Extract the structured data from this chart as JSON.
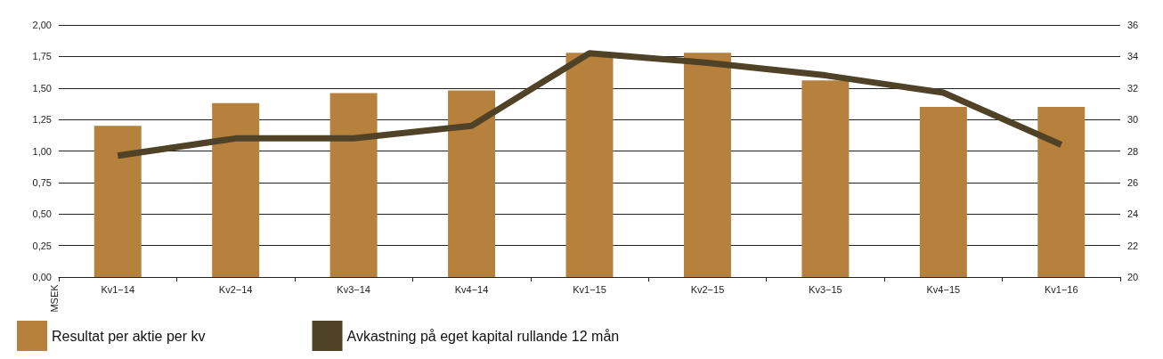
{
  "chart_data": {
    "type": "bar",
    "ylabel": "MSEK",
    "categories": [
      "Kv1−14",
      "Kv2−14",
      "Kv3−14",
      "Kv4−14",
      "Kv1−15",
      "Kv2−15",
      "Kv3−15",
      "Kv4−15",
      "Kv1−16"
    ],
    "series": [
      {
        "name": "Resultat per aktie per kv",
        "color": "#b5813c",
        "values": [
          1.2,
          1.38,
          1.46,
          1.48,
          1.78,
          1.78,
          1.56,
          1.35,
          1.35
        ]
      },
      {
        "name": "Avkastning på eget kapital rullande 12 mån",
        "type": "line",
        "axis": "y2",
        "color": "#4f4226",
        "values": [
          27.7,
          28.8,
          28.8,
          29.6,
          34.2,
          33.6,
          32.8,
          31.7,
          28.4
        ]
      }
    ],
    "ylim": [
      0,
      2
    ],
    "yticks": [
      {
        "value": 0,
        "label": "0,00"
      },
      {
        "value": 0.25,
        "label": "0,25"
      },
      {
        "value": 0.5,
        "label": "0,50"
      },
      {
        "value": 0.75,
        "label": "0,75"
      },
      {
        "value": 1,
        "label": "1,00"
      },
      {
        "value": 1.25,
        "label": "1,25"
      },
      {
        "value": 1.5,
        "label": "1,50"
      },
      {
        "value": 1.75,
        "label": "1,75"
      },
      {
        "value": 2,
        "label": "2,00"
      }
    ],
    "y2lim": [
      20,
      36
    ],
    "y2ticks": [
      20,
      22,
      24,
      26,
      28,
      30,
      32,
      34,
      36
    ],
    "grid": "y",
    "legend": "bottom left",
    "marker": "none",
    "line_style": "solid"
  }
}
